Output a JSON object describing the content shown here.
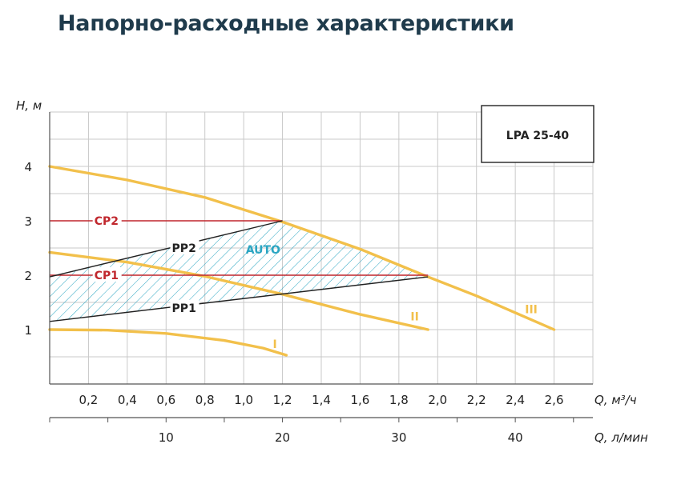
{
  "page_title": "Напорно-расходные характеристики",
  "colors": {
    "title": "#1f3b4c",
    "grid": "#c9c9c9",
    "curve": "#f2c04b",
    "cp": "#c0272d",
    "pp": "#222222",
    "auto": "#2aa5c2"
  },
  "chart_data": {
    "type": "line",
    "model_label": "LPA 25-40",
    "y_axis": {
      "label": "H, м",
      "ticks": [
        "1",
        "2",
        "3",
        "4"
      ],
      "range": [
        0,
        5
      ]
    },
    "x_axis_primary": {
      "label": "Q, м³/ч",
      "ticks": [
        "0,2",
        "0,4",
        "0,6",
        "0,8",
        "1,0",
        "1,2",
        "1,4",
        "1,6",
        "1,8",
        "2,0",
        "2,2",
        "2,4",
        "2,6"
      ],
      "range": [
        0,
        2.8
      ]
    },
    "x_axis_secondary": {
      "label": "Q, л/мин",
      "ticks": [
        "10",
        "20",
        "30",
        "40"
      ],
      "unit_scale_note": ""
    },
    "grid": true,
    "series": [
      {
        "name": "I",
        "points": [
          [
            0,
            1.0
          ],
          [
            0.3,
            0.99
          ],
          [
            0.6,
            0.93
          ],
          [
            0.9,
            0.8
          ],
          [
            1.1,
            0.66
          ],
          [
            1.22,
            0.53
          ]
        ]
      },
      {
        "name": "II",
        "points": [
          [
            0,
            2.42
          ],
          [
            0.4,
            2.24
          ],
          [
            0.8,
            1.98
          ],
          [
            1.2,
            1.65
          ],
          [
            1.6,
            1.28
          ],
          [
            1.95,
            1.0
          ]
        ]
      },
      {
        "name": "III",
        "points": [
          [
            0,
            4.0
          ],
          [
            0.4,
            3.75
          ],
          [
            0.8,
            3.43
          ],
          [
            1.2,
            2.98
          ],
          [
            1.6,
            2.48
          ],
          [
            1.95,
            1.97
          ],
          [
            2.2,
            1.62
          ],
          [
            2.6,
            1.0
          ]
        ]
      }
    ],
    "control_lines": [
      {
        "name": "CP2",
        "from": [
          0,
          3.0
        ],
        "to": [
          1.2,
          3.0
        ]
      },
      {
        "name": "CP1",
        "from": [
          0,
          2.0
        ],
        "to": [
          1.95,
          2.0
        ]
      },
      {
        "name": "PP2",
        "from": [
          0,
          1.97
        ],
        "to": [
          1.2,
          3.0
        ]
      },
      {
        "name": "PP1",
        "from": [
          0,
          1.15
        ],
        "to": [
          1.95,
          1.97
        ]
      }
    ],
    "regions": [
      {
        "name": "AUTO",
        "polygon": [
          [
            0,
            1.97
          ],
          [
            1.2,
            3.0
          ],
          [
            1.6,
            2.48
          ],
          [
            1.95,
            1.97
          ],
          [
            1.2,
            1.65
          ],
          [
            0,
            1.15
          ]
        ]
      }
    ]
  }
}
